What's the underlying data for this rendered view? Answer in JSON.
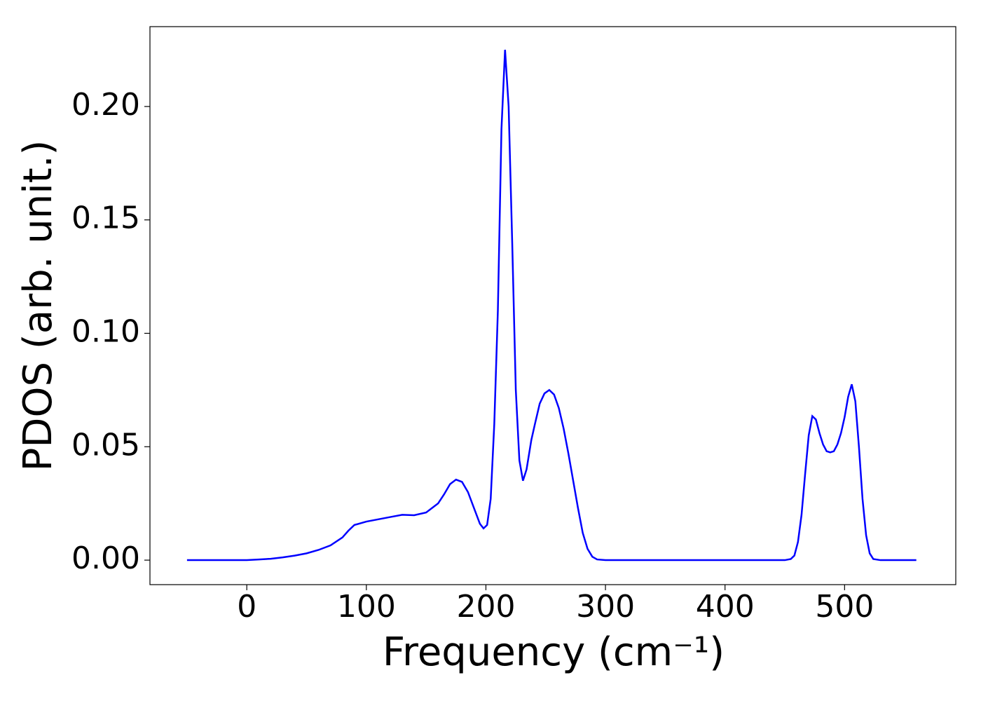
{
  "chart_data": {
    "type": "line",
    "xlabel": "Frequency (cm⁻¹)",
    "ylabel": "PDOS (arb. unit.)",
    "x": [
      -50,
      0,
      10,
      20,
      30,
      40,
      50,
      60,
      70,
      80,
      85,
      90,
      100,
      110,
      120,
      130,
      140,
      150,
      160,
      165,
      170,
      175,
      180,
      185,
      190,
      195,
      198,
      201,
      204,
      207,
      210,
      213,
      216,
      219,
      222,
      225,
      228,
      231,
      234,
      238,
      241,
      245,
      249,
      253,
      257,
      261,
      265,
      269,
      273,
      277,
      281,
      285,
      289,
      293,
      300,
      450,
      455,
      458,
      461,
      464,
      467,
      470,
      473,
      476,
      479,
      482,
      485,
      488,
      491,
      494,
      497,
      500,
      503,
      506,
      509,
      512,
      515,
      518,
      521,
      524,
      530,
      560
    ],
    "series": [
      {
        "color": "#0000ff",
        "values": [
          0,
          0,
          0.0003,
          0.0006,
          0.0012,
          0.002,
          0.003,
          0.0045,
          0.0065,
          0.01,
          0.013,
          0.0155,
          0.017,
          0.018,
          0.019,
          0.02,
          0.0198,
          0.021,
          0.025,
          0.029,
          0.0335,
          0.0355,
          0.0345,
          0.03,
          0.023,
          0.016,
          0.014,
          0.0155,
          0.027,
          0.06,
          0.11,
          0.19,
          0.225,
          0.2,
          0.14,
          0.075,
          0.044,
          0.035,
          0.04,
          0.053,
          0.06,
          0.069,
          0.0735,
          0.075,
          0.073,
          0.067,
          0.058,
          0.047,
          0.035,
          0.023,
          0.012,
          0.005,
          0.0015,
          0.0003,
          0,
          0,
          0.0005,
          0.002,
          0.008,
          0.02,
          0.038,
          0.055,
          0.0635,
          0.062,
          0.056,
          0.051,
          0.048,
          0.0475,
          0.048,
          0.051,
          0.056,
          0.063,
          0.072,
          0.0775,
          0.07,
          0.05,
          0.027,
          0.011,
          0.003,
          0.0005,
          0,
          0
        ]
      }
    ],
    "xlim": [
      -81,
      593
    ],
    "ylim": [
      -0.0108,
      0.2352
    ],
    "xticks": [
      0,
      100,
      200,
      300,
      400,
      500
    ],
    "yticks": [
      {
        "value": 0,
        "label": "0.00"
      },
      0.05,
      {
        "value": 0.1,
        "label": "0.10"
      },
      0.15,
      {
        "value": 0.2,
        "label": "0.20"
      }
    ],
    "grid": false
  }
}
